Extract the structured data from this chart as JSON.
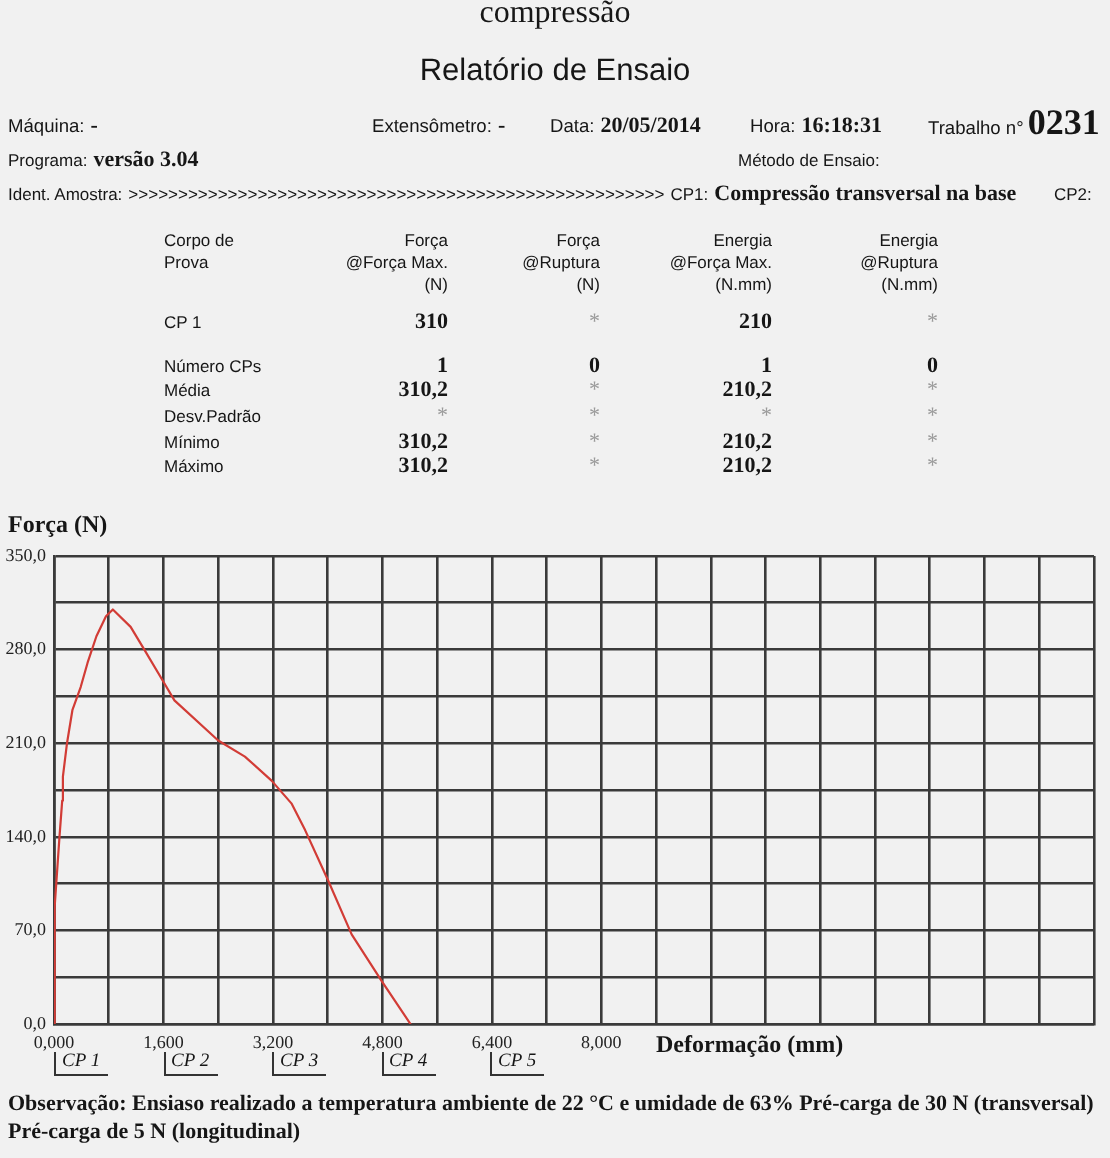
{
  "chart_data": [
    {
      "type": "other",
      "title": "Relatório de Ensaio",
      "annotations": [
        "compressão",
        "Máquina:",
        "-",
        "Extensômetro:",
        "-",
        "Data:",
        "20/05/2014",
        "Hora:",
        "16:18:31",
        "Trabalho n°",
        "0231",
        "Programa:",
        "versão 3.04",
        "Método de Ensaio:",
        "Ident. Amostra:",
        ">>>>>>>>>>>>>>>>>>>>>>>>>>>>>>>>>>>>>>>>>>>>>>>>>>>>>>",
        "CP1:",
        "Compressão transversal na base",
        "CP2:",
        "Corpo de\nProva",
        "Força\n@Força Max.\n(N)",
        "Força\n@Ruptura\n(N)",
        "Energia\n@Força Max.\n(N.mm)",
        "Energia\n@Ruptura\n(N.mm)",
        "CP 1",
        "310",
        "*",
        "210",
        "*",
        "Número CPs",
        "1",
        "0",
        "1",
        "0",
        "Média",
        "310,2",
        "*",
        "210,2",
        "*",
        "Desv.Padrão",
        "*",
        "*",
        "*",
        "*",
        "Mínimo",
        "310,2",
        "*",
        "210,2",
        "*",
        "Máximo",
        "310,2",
        "*",
        "210,2",
        "*"
      ]
    },
    {
      "type": "line",
      "xlabel": "Deformação (mm)",
      "ylabel": "Força (N)",
      "x": [
        0,
        0.01,
        0.08,
        0.12,
        0.13,
        0.19,
        0.27,
        0.39,
        0.49,
        0.62,
        0.76,
        0.86,
        1.12,
        1.32,
        1.61,
        1.76,
        2.4,
        2.79,
        3.18,
        3.47,
        3.67,
        4.01,
        4.35,
        4.79,
        5.21
      ],
      "series": [
        {
          "color": "#d23c36",
          "values": [
            0,
            88,
            140,
            167,
            185,
            210,
            235,
            252,
            270,
            290,
            305,
            310,
            297,
            280,
            255,
            242,
            212,
            200,
            182,
            165,
            145,
            107,
            67,
            32,
            0
          ]
        }
      ],
      "xlim": [
        0,
        15.2
      ],
      "xticks": [
        {
          "value": 0,
          "label": "0,000"
        },
        {
          "value": 0.8,
          "label": null
        },
        {
          "value": 1.6,
          "label": "1,600"
        },
        {
          "value": 2.4,
          "label": null
        },
        {
          "value": 3.2,
          "label": "3,200"
        },
        {
          "value": 4.0,
          "label": null
        },
        {
          "value": 4.8,
          "label": "4,800"
        },
        {
          "value": 5.6,
          "label": null
        },
        {
          "value": 6.4,
          "label": "6,400"
        },
        {
          "value": 7.2,
          "label": null
        },
        {
          "value": 8.0,
          "label": "8,000"
        },
        {
          "value": 8.8,
          "label": null
        },
        {
          "value": 9.6,
          "label": null
        },
        {
          "value": 10.4,
          "label": null
        },
        {
          "value": 11.2,
          "label": null
        },
        {
          "value": 12.0,
          "label": null
        },
        {
          "value": 12.8,
          "label": null
        },
        {
          "value": 13.6,
          "label": null
        },
        {
          "value": 14.4,
          "label": null
        },
        {
          "value": 15.2,
          "label": null
        }
      ],
      "ylim": [
        0,
        350
      ],
      "yticks": [
        {
          "value": 0,
          "label": "0,0"
        },
        {
          "value": 35,
          "label": null
        },
        {
          "value": 70,
          "label": "70,0"
        },
        {
          "value": 105,
          "label": null
        },
        {
          "value": 140,
          "label": "140,0"
        },
        {
          "value": 175,
          "label": null
        },
        {
          "value": 210,
          "label": "210,0"
        },
        {
          "value": 245,
          "label": null
        },
        {
          "value": 280,
          "label": "280,0"
        },
        {
          "value": 315,
          "label": null
        },
        {
          "value": 350,
          "label": "350,0"
        }
      ],
      "grid": true,
      "marker": "none",
      "annotations": [
        "CP 1",
        "CP 2",
        "CP 3",
        "CP 4",
        "CP 5",
        "Observação: Ensiaso realizado a temperatura ambiente de 22 °C e umidade de 63% Pré-carga de 30 N (transversal) Pré-carga de 5 N (longitudinal)"
      ]
    }
  ]
}
